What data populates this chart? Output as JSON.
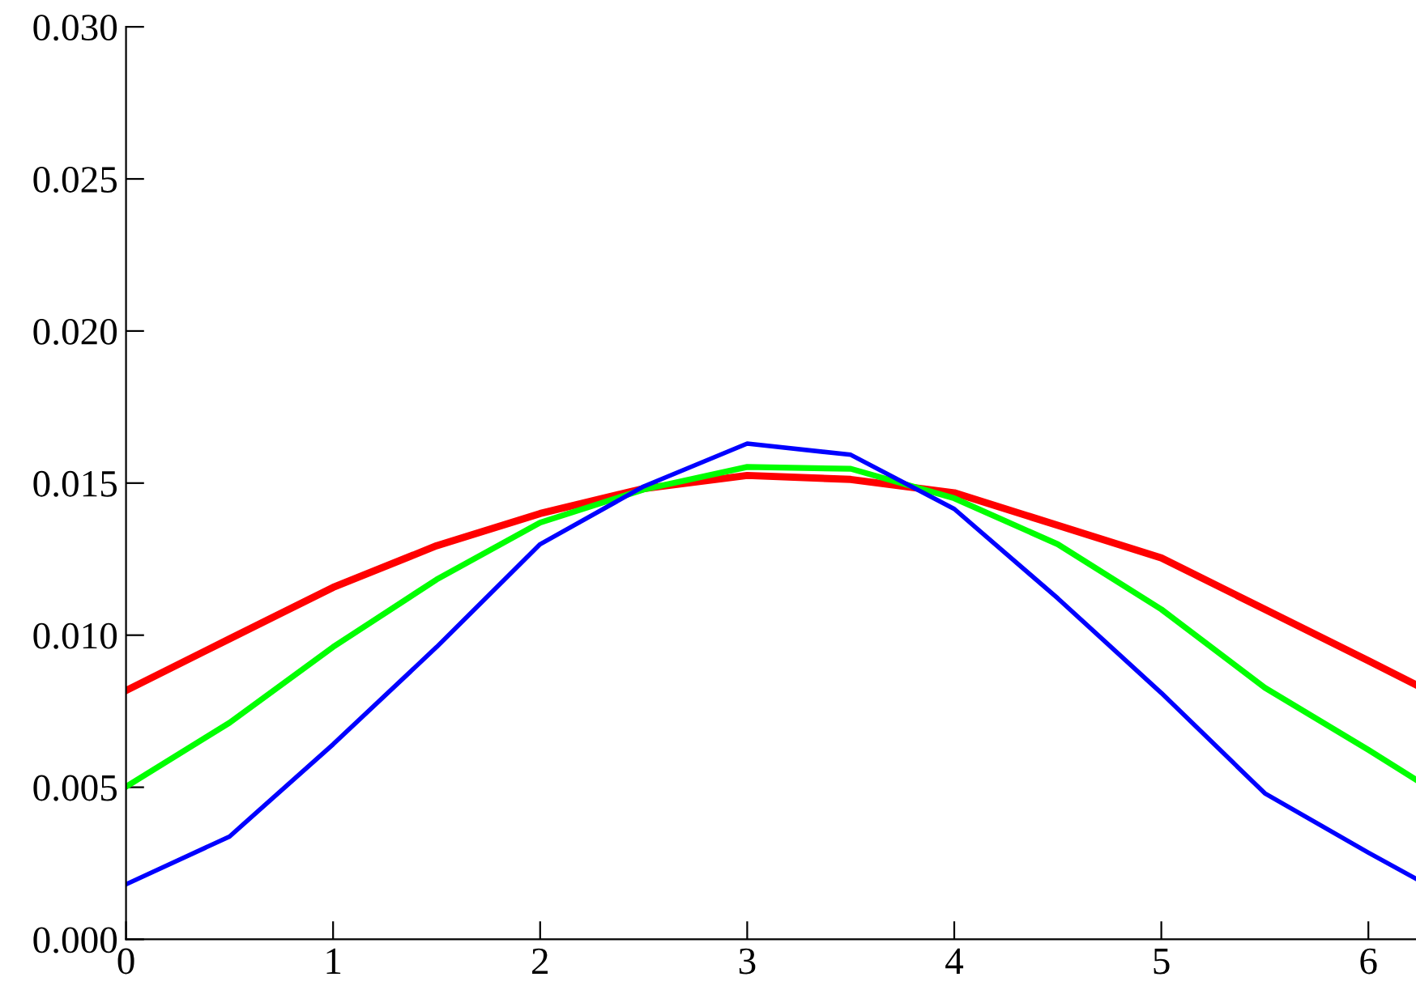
{
  "chart_data": {
    "type": "line",
    "xlim": [
      0,
      6.23
    ],
    "ylim": [
      0,
      0.03
    ],
    "xticks": [
      0,
      1,
      2,
      3,
      4,
      5,
      6
    ],
    "yticks": [
      {
        "value": 0,
        "label": "0.000"
      },
      {
        "value": 0.005,
        "label": "0.005"
      },
      {
        "value": 0.01,
        "label": "0.010"
      },
      {
        "value": 0.015,
        "label": "0.015"
      },
      {
        "value": 0.02,
        "label": "0.020"
      },
      {
        "value": 0.025,
        "label": "0.025"
      },
      {
        "value": 0.03,
        "label": "0.030"
      }
    ],
    "x": [
      0,
      0.5,
      1,
      1.5,
      2,
      2.5,
      3,
      3.5,
      4,
      4.5,
      5,
      5.5,
      6,
      6.23
    ],
    "grid": false,
    "legend": false,
    "marker": "none",
    "line_style": "solid",
    "series": [
      {
        "color": "#ff0000",
        "values": [
          0.00818,
          0.00988,
          0.01157,
          0.01294,
          0.014,
          0.01482,
          0.01525,
          0.01512,
          0.01468,
          0.01361,
          0.01254,
          0.01085,
          0.00916,
          0.00837
        ]
      },
      {
        "color": "#00ff00",
        "values": [
          0.00502,
          0.00712,
          0.00961,
          0.01183,
          0.0137,
          0.01479,
          0.01553,
          0.01547,
          0.0145,
          0.01299,
          0.01085,
          0.00827,
          0.00623,
          0.00525
        ]
      },
      {
        "color": "#0000ff",
        "values": [
          0.00181,
          0.00338,
          0.00641,
          0.00961,
          0.01299,
          0.01489,
          0.0163,
          0.01593,
          0.01415,
          0.01121,
          0.0081,
          0.0048,
          0.00285,
          0.00199
        ]
      }
    ]
  }
}
